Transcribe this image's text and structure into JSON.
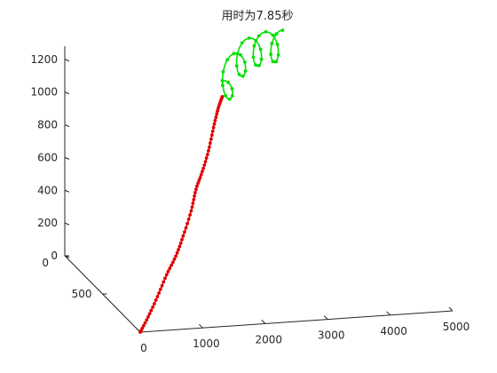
{
  "chart_data": {
    "type": "line3d",
    "title": "用时为7.85秒",
    "xlabel": "",
    "ylabel": "",
    "zlabel": "",
    "grid": false,
    "legend": false,
    "axes": {
      "x": {
        "ticks": [
          "0",
          "1000",
          "2000",
          "3000",
          "4000",
          "5000"
        ]
      },
      "y": {
        "ticks": [
          "0",
          "500"
        ]
      },
      "z": {
        "ticks": [
          "0",
          "200",
          "400",
          "600",
          "800",
          "1000",
          "1200"
        ]
      }
    },
    "series": [
      {
        "color": "#e00000",
        "marker": "dot",
        "points": [
          [
            0,
            0,
            0
          ],
          [
            200,
            60,
            60
          ],
          [
            420,
            120,
            150
          ],
          [
            640,
            180,
            250
          ],
          [
            860,
            240,
            330
          ],
          [
            1050,
            300,
            420
          ],
          [
            1250,
            360,
            540
          ],
          [
            1400,
            420,
            640
          ],
          [
            1560,
            470,
            720
          ],
          [
            1720,
            520,
            820
          ],
          [
            1850,
            560,
            940
          ],
          [
            1960,
            590,
            1040
          ],
          [
            2050,
            610,
            1100
          ]
        ]
      },
      {
        "color": "#00e000",
        "marker": "dot",
        "points": [
          [
            2050,
            610,
            1100
          ],
          [
            2300,
            720,
            1160
          ],
          [
            2600,
            850,
            1180
          ],
          [
            2900,
            960,
            1175
          ],
          [
            3200,
            1060,
            1150
          ],
          [
            3500,
            1160,
            1110
          ],
          [
            3800,
            1260,
            1060
          ]
        ]
      }
    ]
  }
}
